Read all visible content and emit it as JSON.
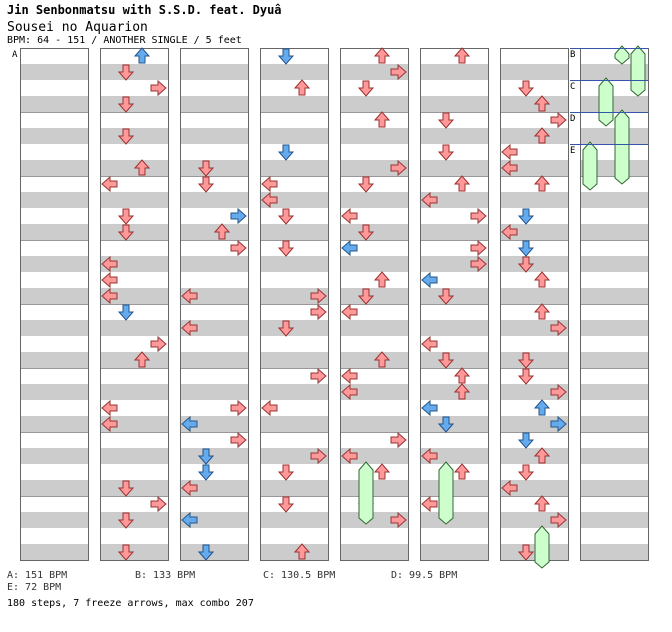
{
  "header": {
    "artist": "Jin Senbonmatsu with S.S.D. feat. Dyuâ",
    "title": "Sousei no Aquarion",
    "info": "BPM: 64 - 151 / ANOTHER SINGLE / 5 feet"
  },
  "columns": 8,
  "section_labels": [
    "A",
    "B",
    "C",
    "D",
    "E"
  ],
  "legend": {
    "a": "A: 151 BPM",
    "b": "B: 133 BPM",
    "c": "C: 130.5 BPM",
    "d": "D: 99.5 BPM",
    "e": "E: 72 BPM"
  },
  "summary": "180 steps, 7 freeze arrows, max combo 207",
  "colors": {
    "stripe": "#cccccc",
    "border": "#666666",
    "arrow_red": "#ff9999",
    "arrow_blue": "#66aaee",
    "freeze_green": "#ccffcc",
    "bpm_line": "#3355aa"
  },
  "icons": [
    "left-arrow-icon",
    "down-arrow-icon",
    "up-arrow-icon",
    "right-arrow-icon",
    "freeze-arrow-icon"
  ]
}
